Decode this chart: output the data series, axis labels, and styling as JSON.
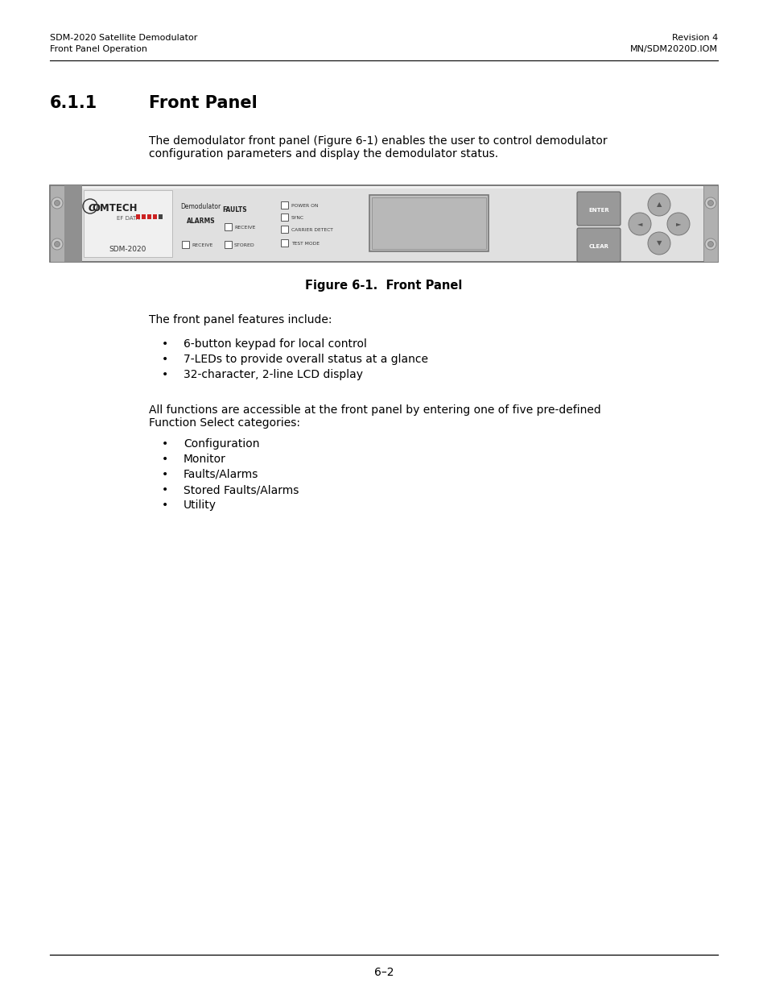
{
  "header_left_line1": "SDM-2020 Satellite Demodulator",
  "header_left_line2": "Front Panel Operation",
  "header_right_line1": "Revision 4",
  "header_right_line2": "MN/SDM2020D.IOM",
  "section_number": "6.1.1",
  "section_title": "Front Panel",
  "intro_text_line1": "The demodulator front panel (Figure 6-1) enables the user to control demodulator",
  "intro_text_line2": "configuration parameters and display the demodulator status.",
  "figure_caption": "Figure 6-1.  Front Panel",
  "features_intro": "The front panel features include:",
  "features_bullets": [
    "6-button keypad for local control",
    "7-LEDs to provide overall status at a glance",
    "32-character, 2-line LCD display"
  ],
  "functions_line1": "All functions are accessible at the front panel by entering one of five pre-defined",
  "functions_line2": "Function Select categories:",
  "categories_bullets": [
    "Configuration",
    "Monitor",
    "Faults/Alarms",
    "Stored Faults/Alarms",
    "Utility"
  ],
  "page_number": "6–2",
  "bg_color": "#ffffff",
  "text_color": "#000000",
  "header_fontsize": 8.0,
  "section_num_fontsize": 15,
  "section_title_fontsize": 15,
  "body_fontsize": 10.0,
  "caption_fontsize": 10.5,
  "page_num_fontsize": 10
}
